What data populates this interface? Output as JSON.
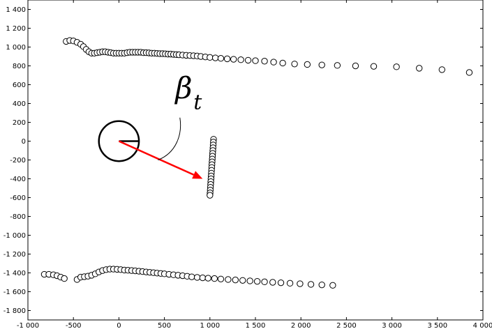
{
  "chart_data": {
    "type": "scatter",
    "title": "",
    "xlabel": "",
    "ylabel": "",
    "xlim": [
      -1000,
      4000
    ],
    "ylim": [
      -1900,
      1500
    ],
    "xticks": [
      -1000,
      -500,
      0,
      500,
      1000,
      1500,
      2000,
      2500,
      3000,
      3500,
      4000
    ],
    "yticks": [
      -1800,
      -1600,
      -1400,
      -1200,
      -1000,
      -800,
      -600,
      -400,
      -200,
      0,
      200,
      400,
      600,
      800,
      1000,
      1200,
      1400
    ],
    "grid": false,
    "marker": "open-circle",
    "series": [
      {
        "points": [
          [
            -580,
            1060
          ],
          [
            -540,
            1070
          ],
          [
            -500,
            1065
          ],
          [
            -460,
            1050
          ],
          [
            -420,
            1030
          ],
          [
            -390,
            1005
          ],
          [
            -360,
            975
          ],
          [
            -330,
            950
          ],
          [
            -300,
            935
          ],
          [
            -270,
            935
          ],
          [
            -240,
            940
          ],
          [
            -210,
            945
          ],
          [
            -180,
            950
          ],
          [
            -150,
            950
          ],
          [
            -120,
            945
          ],
          [
            -90,
            940
          ],
          [
            -60,
            935
          ],
          [
            -30,
            935
          ],
          [
            0,
            935
          ],
          [
            30,
            935
          ],
          [
            60,
            935
          ],
          [
            90,
            940
          ],
          [
            120,
            945
          ],
          [
            150,
            945
          ],
          [
            180,
            945
          ],
          [
            210,
            945
          ],
          [
            240,
            945
          ],
          [
            270,
            940
          ],
          [
            300,
            940
          ],
          [
            330,
            938
          ],
          [
            360,
            935
          ],
          [
            390,
            935
          ],
          [
            420,
            932
          ],
          [
            450,
            930
          ],
          [
            480,
            930
          ],
          [
            510,
            928
          ],
          [
            540,
            925
          ],
          [
            570,
            925
          ],
          [
            600,
            922
          ],
          [
            630,
            920
          ],
          [
            660,
            918
          ],
          [
            700,
            915
          ],
          [
            740,
            912
          ],
          [
            780,
            910
          ],
          [
            820,
            908
          ],
          [
            860,
            905
          ],
          [
            900,
            900
          ],
          [
            950,
            895
          ],
          [
            1000,
            890
          ],
          [
            1060,
            885
          ],
          [
            1120,
            880
          ],
          [
            1190,
            875
          ],
          [
            1260,
            870
          ],
          [
            1340,
            865
          ],
          [
            1420,
            860
          ],
          [
            1500,
            855
          ],
          [
            1600,
            850
          ],
          [
            1700,
            840
          ],
          [
            1800,
            830
          ],
          [
            1930,
            820
          ],
          [
            2070,
            815
          ],
          [
            2230,
            810
          ],
          [
            2400,
            805
          ],
          [
            2600,
            800
          ],
          [
            2800,
            795
          ],
          [
            3050,
            790
          ],
          [
            3300,
            775
          ],
          [
            3550,
            760
          ],
          [
            3850,
            730
          ]
        ]
      },
      {
        "points": [
          [
            -820,
            -1415
          ],
          [
            -770,
            -1415
          ],
          [
            -720,
            -1420
          ],
          [
            -680,
            -1430
          ],
          [
            -640,
            -1445
          ],
          [
            -600,
            -1460
          ],
          [
            -460,
            -1470
          ],
          [
            -420,
            -1445
          ],
          [
            -380,
            -1440
          ],
          [
            -340,
            -1435
          ],
          [
            -300,
            -1425
          ],
          [
            -260,
            -1410
          ],
          [
            -220,
            -1390
          ],
          [
            -180,
            -1375
          ],
          [
            -140,
            -1365
          ],
          [
            -100,
            -1360
          ],
          [
            -60,
            -1360
          ],
          [
            -20,
            -1362
          ],
          [
            20,
            -1365
          ],
          [
            60,
            -1370
          ],
          [
            100,
            -1372
          ],
          [
            140,
            -1375
          ],
          [
            180,
            -1378
          ],
          [
            220,
            -1382
          ],
          [
            260,
            -1386
          ],
          [
            300,
            -1390
          ],
          [
            340,
            -1394
          ],
          [
            380,
            -1398
          ],
          [
            420,
            -1402
          ],
          [
            460,
            -1406
          ],
          [
            500,
            -1410
          ],
          [
            550,
            -1415
          ],
          [
            600,
            -1420
          ],
          [
            650,
            -1425
          ],
          [
            700,
            -1430
          ],
          [
            750,
            -1436
          ],
          [
            800,
            -1442
          ],
          [
            860,
            -1448
          ],
          [
            920,
            -1452
          ],
          [
            980,
            -1456
          ],
          [
            1050,
            -1460
          ],
          [
            1120,
            -1465
          ],
          [
            1200,
            -1470
          ],
          [
            1280,
            -1475
          ],
          [
            1360,
            -1480
          ],
          [
            1440,
            -1485
          ],
          [
            1520,
            -1490
          ],
          [
            1600,
            -1495
          ],
          [
            1690,
            -1500
          ],
          [
            1780,
            -1505
          ],
          [
            1880,
            -1510
          ],
          [
            1990,
            -1515
          ],
          [
            2110,
            -1522
          ],
          [
            2230,
            -1527
          ],
          [
            2350,
            -1532
          ]
        ]
      },
      {
        "points": [
          [
            1040,
            20
          ],
          [
            1038,
            -10
          ],
          [
            1036,
            -40
          ],
          [
            1034,
            -70
          ],
          [
            1032,
            -100
          ],
          [
            1030,
            -130
          ],
          [
            1028,
            -160
          ],
          [
            1026,
            -190
          ],
          [
            1024,
            -220
          ],
          [
            1022,
            -250
          ],
          [
            1020,
            -280
          ],
          [
            1018,
            -310
          ],
          [
            1016,
            -340
          ],
          [
            1014,
            -370
          ],
          [
            1012,
            -400
          ],
          [
            1010,
            -430
          ],
          [
            1008,
            -460
          ],
          [
            1006,
            -490
          ],
          [
            1004,
            -520
          ],
          [
            1002,
            -550
          ],
          [
            1000,
            -575
          ]
        ]
      }
    ],
    "annotations": {
      "circle": {
        "center": [
          0,
          0
        ],
        "radius": 220
      },
      "arrow": {
        "from": [
          0,
          0
        ],
        "to": [
          920,
          -400
        ],
        "color": "#ff0000"
      },
      "label": {
        "text_main": "β",
        "text_sub": "t",
        "at": [
          850,
          430
        ],
        "leader_from": [
          670,
          250
        ],
        "leader_to": [
          430,
          -200
        ]
      }
    }
  }
}
